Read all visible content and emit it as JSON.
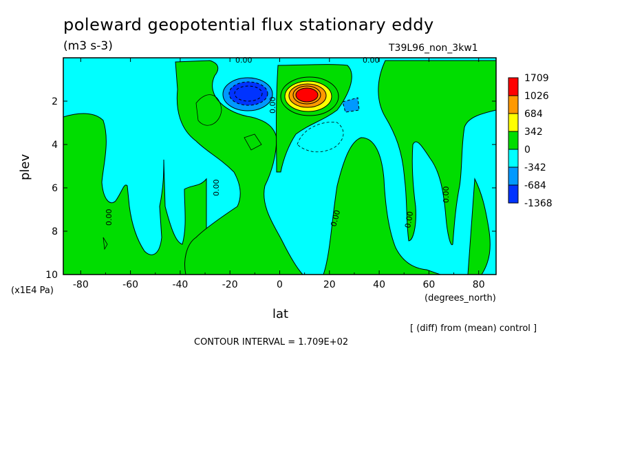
{
  "chart_data": {
    "type": "heatmap",
    "title": "poleward geopotential flux stationary eddy",
    "units": "(m3 s-3)",
    "run_label": "T39L96_non_3kw1",
    "xlabel": "lat",
    "xunits": "(degrees_north)",
    "ylabel": "plev",
    "yunits": "(x1E4 Pa)",
    "xlim": [
      -87,
      87
    ],
    "ylim": [
      0,
      10
    ],
    "y_inverted": true,
    "xticks": [
      -80,
      -60,
      -40,
      -20,
      0,
      20,
      40,
      60,
      80
    ],
    "yticks": [
      2,
      4,
      6,
      8,
      10
    ],
    "note": "[ (diff) from (mean) control ]",
    "contour_interval_text": "CONTOUR INTERVAL = 1.709E+02",
    "contour_interval": 170.9,
    "legend": {
      "levels": [
        "1709",
        "1026",
        "684",
        "342",
        "0",
        "-342",
        "-684",
        "-1368"
      ],
      "colors": [
        "#ff0000",
        "#ff9900",
        "#ffff00",
        "#00dd00",
        "#00ffff",
        "#0099ff",
        "#0033ff"
      ]
    },
    "colors": {
      "positive_weak": "#00dd00",
      "negative_weak": "#00ffff"
    },
    "zero_contour_label": "0.00",
    "features": [
      {
        "name": "negative-core",
        "lat": -13,
        "plev": 1.6,
        "value_range": [
          -1368,
          -684
        ]
      },
      {
        "name": "positive-core",
        "lat": 13,
        "plev": 1.6,
        "value_range": [
          1026,
          1709
        ]
      },
      {
        "name": "secondary-negative",
        "lat": 30,
        "plev": 2.1,
        "value_range": [
          -684,
          -342
        ]
      }
    ]
  }
}
